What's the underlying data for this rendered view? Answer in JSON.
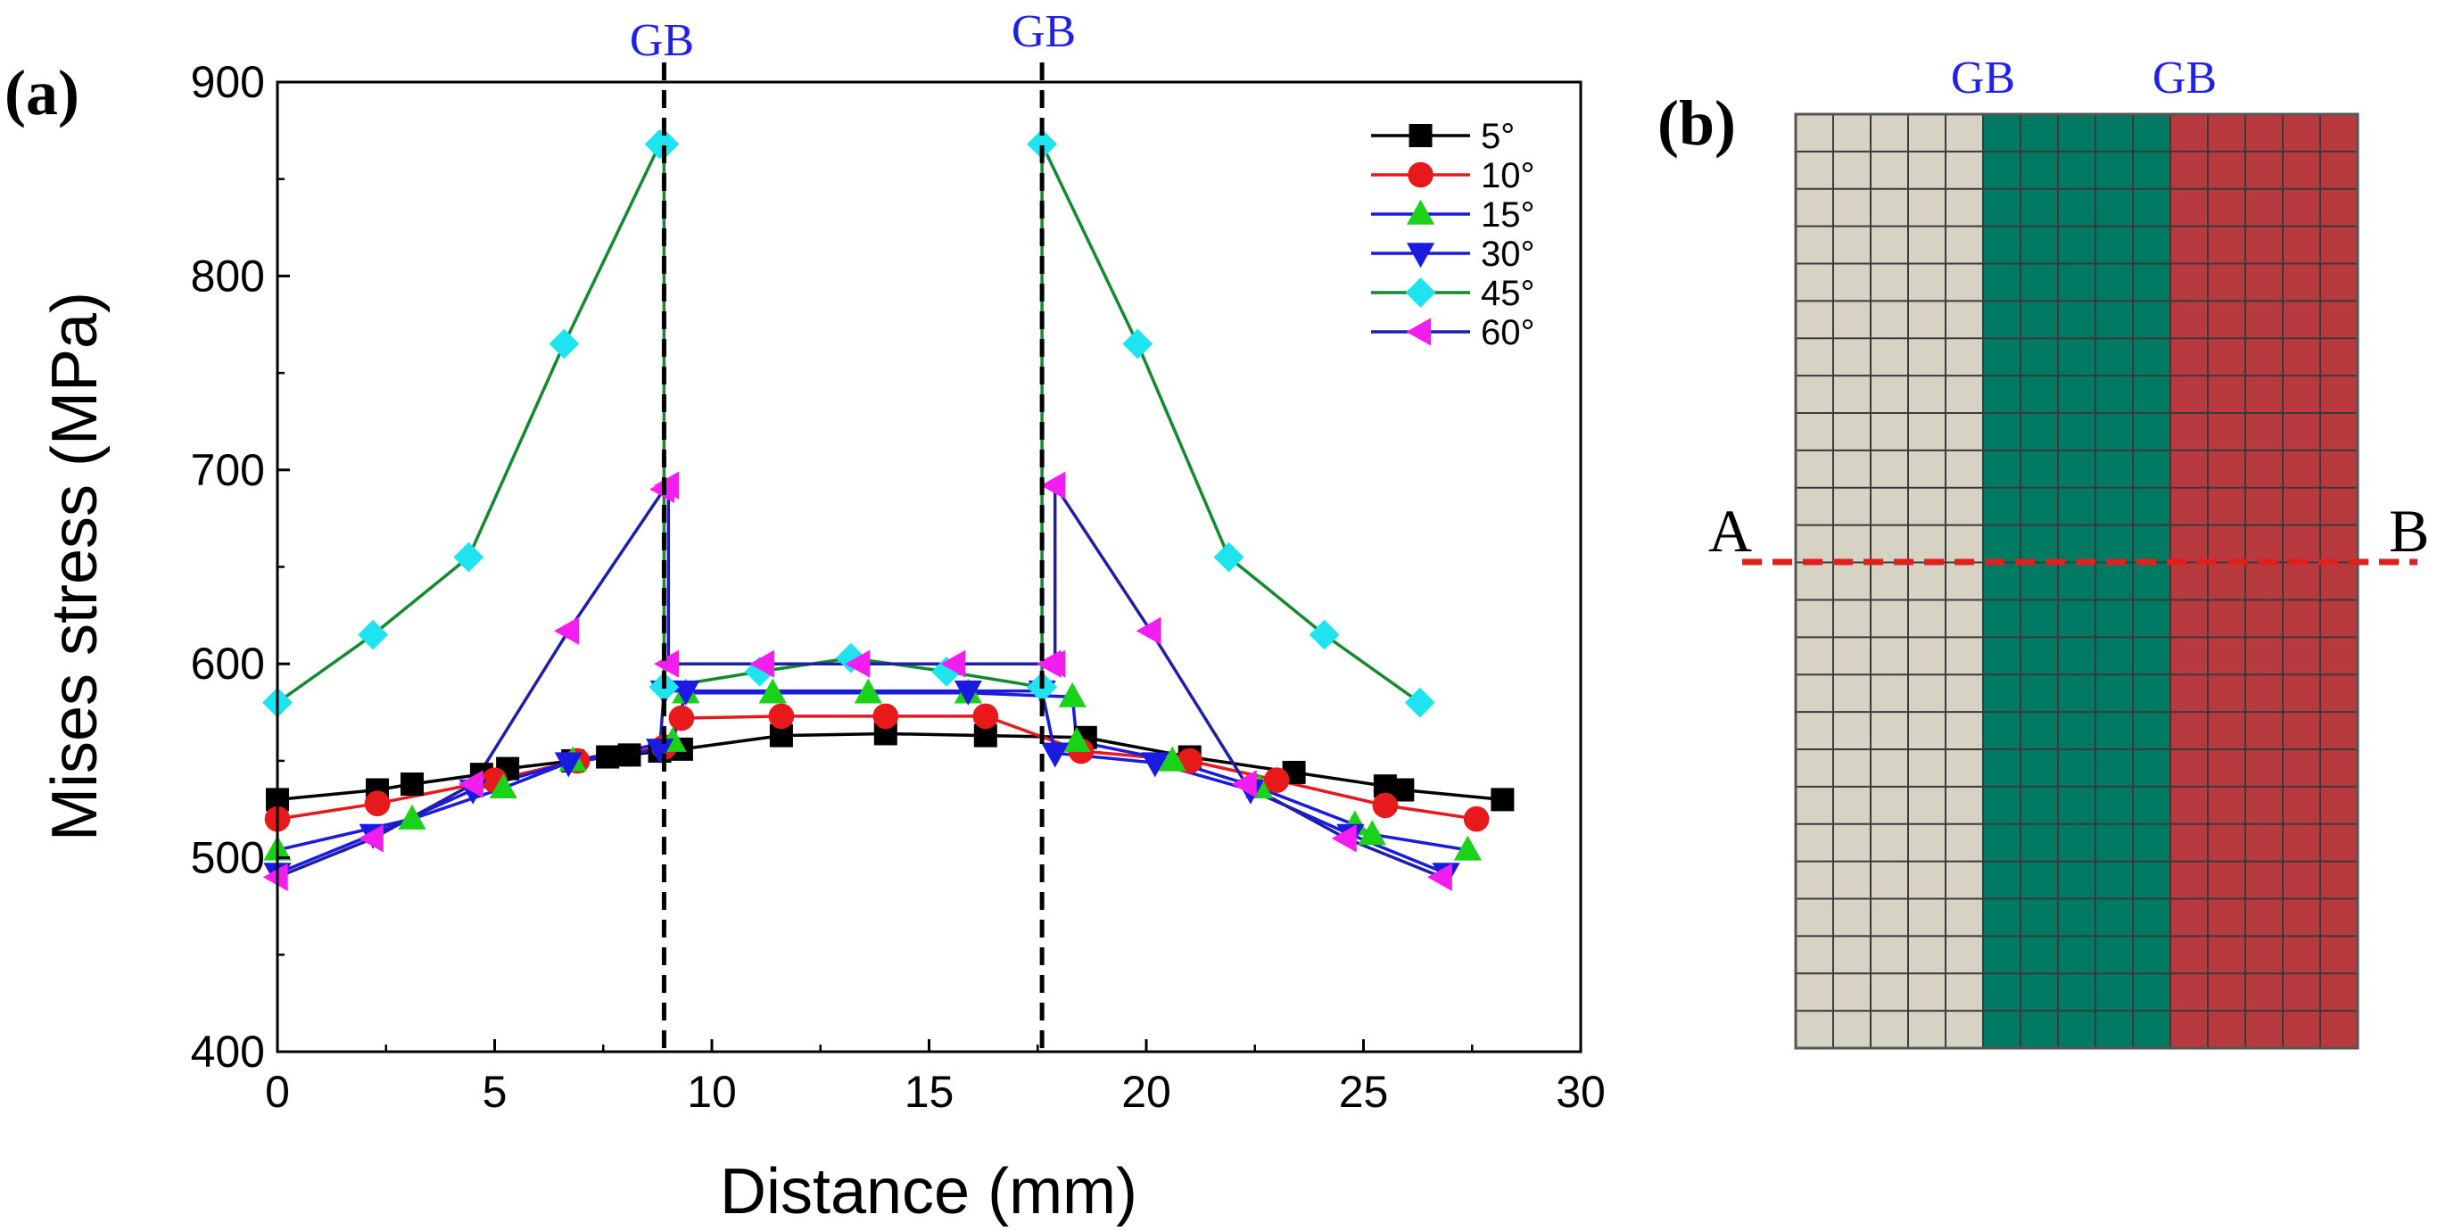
{
  "panel_a": {
    "label": "(a)",
    "gb_labels": [
      "GB",
      "GB"
    ]
  },
  "panel_b": {
    "label": "(b)",
    "gb_labels": [
      "GB",
      "GB"
    ],
    "endpoint_a": "A",
    "endpoint_b": "B",
    "colors": {
      "grain1": "#d6d2c4",
      "grain2": "#007a63",
      "grain3": "#b83a3e",
      "gridline": "#3a3a3a",
      "section_line": "#e0201c"
    }
  },
  "chart_data": {
    "type": "line",
    "title": "",
    "xlabel": "Distance (mm)",
    "ylabel": "Mises stress (MPa)",
    "xlim": [
      0,
      30
    ],
    "ylim": [
      400,
      900
    ],
    "xticks": [
      0,
      5,
      10,
      15,
      20,
      25,
      30
    ],
    "yticks": [
      400,
      500,
      600,
      700,
      800,
      900
    ],
    "grain_boundaries_x": [
      8.9,
      17.6
    ],
    "legend_position": "top-right",
    "series": [
      {
        "name": "5°",
        "line": "#000000",
        "fill": "#000000",
        "marker": "square",
        "x": [
          0,
          2.3,
          3.1,
          4.7,
          5.3,
          6.8,
          7.6,
          8.1,
          8.8,
          9.3,
          11.6,
          14,
          16.3,
          18.6,
          21,
          23.4,
          25.5,
          25.9,
          28.2
        ],
        "y": [
          530,
          535,
          538,
          543,
          546,
          550,
          552,
          553,
          555,
          556,
          563,
          564,
          563,
          562,
          552,
          544,
          537,
          535,
          530
        ]
      },
      {
        "name": "10°",
        "line": "#e8191a",
        "fill": "#e8191a",
        "marker": "circle",
        "x": [
          0,
          2.3,
          5,
          6.9,
          8.9,
          9.3,
          11.6,
          14,
          16.3,
          18.5,
          21,
          23,
          25.5,
          27.6
        ],
        "y": [
          520,
          528,
          540,
          550,
          557,
          572,
          573,
          573,
          573,
          555,
          550,
          540,
          527,
          520
        ]
      },
      {
        "name": "15°",
        "line": "#1a1ae0",
        "fill": "#1ad21a",
        "marker": "triangle-up",
        "x": [
          0,
          3.1,
          5.2,
          6.8,
          9.1,
          9.4,
          11.4,
          13.6,
          15.9,
          18.3,
          18.4,
          20.6,
          22.6,
          24.8,
          25.2,
          27.4
        ],
        "y": [
          504,
          520,
          536,
          550,
          560,
          585,
          585,
          585,
          585,
          583,
          560,
          550,
          536,
          517,
          512,
          504
        ]
      },
      {
        "name": "30°",
        "line": "#1a1ae0",
        "fill": "#1a1ae0",
        "marker": "triangle-down",
        "x": [
          0,
          2.2,
          4.5,
          6.7,
          8.8,
          8.9,
          9.4,
          15.9,
          17.6,
          17.9,
          20.2,
          22.4,
          24.7,
          26.9
        ],
        "y": [
          492,
          512,
          535,
          549,
          556,
          586,
          586,
          586,
          586,
          554,
          549,
          535,
          512,
          492
        ]
      },
      {
        "name": "45°",
        "line": "#128a30",
        "fill": "#1ee4f0",
        "marker": "diamond",
        "x": [
          0,
          2.2,
          4.4,
          6.6,
          8.8,
          8.9,
          8.9,
          11.1,
          13.2,
          15.4,
          17.6,
          17.6,
          17.6,
          19.8,
          21.9,
          24.1,
          26.3
        ],
        "y": [
          580,
          615,
          655,
          765,
          868,
          868,
          588,
          596,
          603,
          596,
          588,
          588,
          868,
          765,
          655,
          615,
          580
        ]
      },
      {
        "name": "60°",
        "line": "#1e1ea8",
        "fill": "#f21ef0",
        "marker": "triangle-left",
        "x": [
          0,
          2.2,
          4.5,
          6.7,
          8.9,
          9,
          9,
          11.2,
          13.4,
          15.6,
          17.8,
          17.9,
          17.9,
          20.1,
          22.3,
          24.6,
          26.8
        ],
        "y": [
          490,
          510,
          538,
          617,
          690,
          692,
          600,
          600,
          600,
          600,
          600,
          600,
          692,
          617,
          538,
          510,
          490
        ]
      }
    ]
  }
}
